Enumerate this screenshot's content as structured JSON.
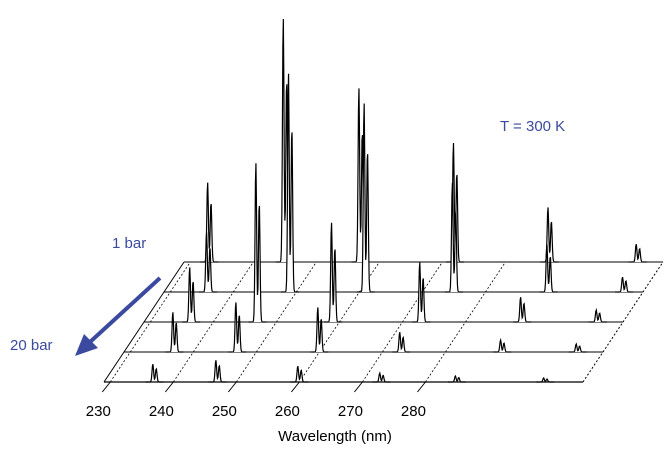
{
  "chart_data": {
    "type": "waterfall",
    "x_label": "Wavelength (nm)",
    "annotations": [
      "T = 300 K",
      "1 bar",
      "20 bar"
    ],
    "annotation_color": "#3b4a9e",
    "line_color": "#000000",
    "xlim": [
      229,
      305
    ],
    "xticks": [
      230,
      240,
      250,
      260,
      270,
      280
    ],
    "ylim": [
      0,
      300
    ],
    "series": [
      {
        "x": [
          233,
          245,
          257,
          272,
          287,
          301
        ],
        "values": [
          80,
          245,
          175,
          120,
          55,
          18
        ]
      },
      {
        "x": [
          236,
          249,
          261,
          275,
          290,
          302
        ],
        "values": [
          60,
          220,
          190,
          110,
          48,
          15
        ]
      },
      {
        "x": [
          236.5,
          247,
          259,
          273,
          289,
          301
        ],
        "values": [
          55,
          160,
          100,
          60,
          25,
          12
        ]
      },
      {
        "x": [
          237,
          247,
          260,
          273,
          289,
          301
        ],
        "values": [
          40,
          50,
          45,
          20,
          12,
          8
        ]
      },
      {
        "x": [
          237,
          247,
          260,
          273,
          285,
          299
        ],
        "values": [
          18,
          22,
          16,
          9,
          6,
          4
        ]
      }
    ]
  }
}
